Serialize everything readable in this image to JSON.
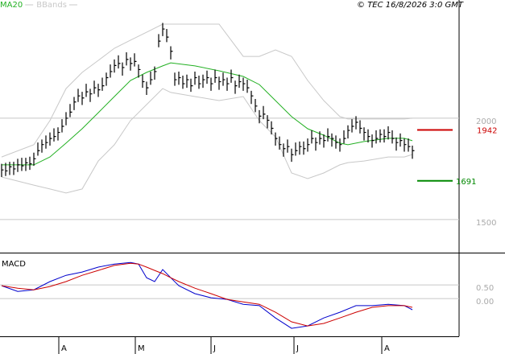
{
  "copyright": "© TEC 16/8/2026 3:0 GMT",
  "chart_data": [
    {
      "type": "ohlc",
      "xlim": [
        -0.4,
        113.6
      ],
      "ylim": [
        1341,
        2583
      ],
      "yticks": [
        2000,
        1500
      ],
      "grid": true,
      "color": "#000000",
      "high": [
        1775,
        1780,
        1785,
        1785,
        1800,
        1805,
        1805,
        1810,
        1830,
        1880,
        1895,
        1915,
        1930,
        1950,
        1955,
        1995,
        2030,
        2070,
        2105,
        2145,
        2130,
        2170,
        2145,
        2185,
        2170,
        2200,
        2225,
        2265,
        2290,
        2310,
        2275,
        2325,
        2300,
        2320,
        2265,
        2215,
        2180,
        2230,
        2255,
        2415,
        2470,
        2440,
        2355,
        2225,
        2230,
        2210,
        2215,
        2195,
        2230,
        2210,
        2215,
        2235,
        2200,
        2240,
        2205,
        2225,
        2200,
        2240,
        2185,
        2215,
        2200,
        2190,
        2135,
        2095,
        2040,
        2060,
        2015,
        1985,
        1930,
        1910,
        1875,
        1895,
        1850,
        1880,
        1885,
        1885,
        1900,
        1940,
        1905,
        1935,
        1920,
        1950,
        1925,
        1915,
        1900,
        1940,
        1965,
        1995,
        2010,
        1990,
        1955,
        1945,
        1920,
        1940,
        1945,
        1945,
        1960,
        1940,
        1905,
        1925,
        1900,
        1900,
        1865
      ],
      "low": [
        1710,
        1715,
        1720,
        1720,
        1735,
        1740,
        1740,
        1745,
        1765,
        1815,
        1830,
        1850,
        1865,
        1885,
        1890,
        1930,
        1965,
        2005,
        2040,
        2080,
        2065,
        2105,
        2080,
        2120,
        2105,
        2135,
        2160,
        2200,
        2225,
        2245,
        2210,
        2260,
        2235,
        2255,
        2200,
        2150,
        2115,
        2165,
        2190,
        2350,
        2405,
        2375,
        2290,
        2160,
        2165,
        2145,
        2150,
        2130,
        2165,
        2145,
        2150,
        2170,
        2135,
        2175,
        2140,
        2160,
        2135,
        2175,
        2120,
        2150,
        2135,
        2125,
        2070,
        2030,
        1975,
        1995,
        1950,
        1920,
        1865,
        1845,
        1810,
        1830,
        1785,
        1815,
        1820,
        1820,
        1835,
        1875,
        1840,
        1870,
        1855,
        1885,
        1860,
        1850,
        1835,
        1875,
        1900,
        1930,
        1945,
        1925,
        1890,
        1880,
        1855,
        1875,
        1880,
        1880,
        1895,
        1875,
        1840,
        1860,
        1835,
        1835,
        1800
      ],
      "close": [
        1745,
        1740,
        1760,
        1750,
        1770,
        1765,
        1780,
        1775,
        1800,
        1840,
        1870,
        1880,
        1900,
        1910,
        1930,
        1960,
        2000,
        2030,
        2080,
        2110,
        2100,
        2130,
        2120,
        2150,
        2140,
        2160,
        2200,
        2230,
        2260,
        2270,
        2250,
        2290,
        2270,
        2280,
        2240,
        2180,
        2150,
        2190,
        2230,
        2380,
        2440,
        2400,
        2330,
        2190,
        2200,
        2170,
        2190,
        2160,
        2200,
        2170,
        2190,
        2200,
        2170,
        2200,
        2180,
        2190,
        2170,
        2200,
        2160,
        2180,
        2170,
        2150,
        2110,
        2060,
        2010,
        2020,
        1990,
        1950,
        1900,
        1870,
        1850,
        1860,
        1820,
        1840,
        1860,
        1850,
        1870,
        1900,
        1880,
        1900,
        1890,
        1910,
        1900,
        1880,
        1870,
        1900,
        1940,
        1960,
        1980,
        1950,
        1930,
        1910,
        1890,
        1900,
        1920,
        1910,
        1930,
        1900,
        1880,
        1890,
        1870,
        1860,
        1840
      ],
      "series": [
        {
          "name": "MA20",
          "color": "#22b022",
          "x": [
            0,
            8,
            12,
            16,
            20,
            24,
            28,
            32,
            36,
            40,
            42,
            48,
            54,
            60,
            64,
            68,
            72,
            76,
            80,
            84,
            86,
            90,
            96,
            100,
            102
          ],
          "values": [
            1770,
            1770,
            1809,
            1877,
            1948,
            2027,
            2107,
            2186,
            2226,
            2258,
            2273,
            2258,
            2234,
            2206,
            2166,
            2087,
            2008,
            1948,
            1916,
            1877,
            1869,
            1885,
            1901,
            1901,
            1889
          ]
        }
      ],
      "bands": {
        "name": "BBands",
        "color": "#c8c8c8",
        "x": [
          0,
          8,
          12,
          16,
          20,
          24,
          28,
          32,
          36,
          40,
          42,
          48,
          54,
          60,
          64,
          68,
          72,
          76,
          80,
          84,
          86,
          90,
          96,
          100,
          102
        ],
        "upper": [
          1809,
          1869,
          1988,
          2146,
          2226,
          2285,
          2345,
          2385,
          2424,
          2464,
          2464,
          2464,
          2464,
          2305,
          2305,
          2337,
          2305,
          2186,
          2087,
          2008,
          1996,
          1996,
          1996,
          1996,
          2000
        ],
        "lower": [
          1710,
          1670,
          1651,
          1631,
          1651,
          1789,
          1869,
          1988,
          2067,
          2146,
          2127,
          2107,
          2087,
          2107,
          1988,
          1908,
          1730,
          1702,
          1730,
          1770,
          1781,
          1789,
          1809,
          1809,
          1821
        ]
      },
      "levels": [
        {
          "value": 1942,
          "color": "#cc0000"
        },
        {
          "value": 1691,
          "color": "#008800"
        }
      ]
    },
    {
      "type": "line",
      "title": "MACD",
      "xlim": [
        -0.4,
        113.6
      ],
      "ylim": [
        -1.38,
        1.62
      ],
      "yticks": [
        {
          "value": 0.5,
          "label": "0.50"
        },
        {
          "value": 0,
          "label": "0.00"
        }
      ],
      "xticks": [
        {
          "value": 14.2,
          "label": "A"
        },
        {
          "value": 33.2,
          "label": "M"
        },
        {
          "value": 52,
          "label": "J"
        },
        {
          "value": 72.6,
          "label": "J"
        },
        {
          "value": 94.4,
          "label": "A"
        }
      ],
      "x": [
        0,
        4,
        8,
        12,
        16,
        20,
        24,
        28,
        32,
        34,
        36,
        38,
        40,
        42,
        44,
        48,
        52,
        56,
        60,
        64,
        68,
        72,
        76,
        80,
        84,
        88,
        92,
        96,
        100,
        102
      ],
      "series": [
        {
          "color": "#0000cc",
          "values": [
            0.47,
            0.26,
            0.32,
            0.62,
            0.85,
            0.97,
            1.15,
            1.26,
            1.32,
            1.26,
            0.76,
            0.62,
            1.06,
            0.76,
            0.47,
            0.18,
            0.03,
            -0.03,
            -0.21,
            -0.26,
            -0.71,
            -1.09,
            -1.0,
            -0.71,
            -0.5,
            -0.26,
            -0.26,
            -0.21,
            -0.26,
            -0.41
          ]
        },
        {
          "color": "#cc0000",
          "values": [
            0.47,
            0.38,
            0.32,
            0.44,
            0.62,
            0.85,
            1.03,
            1.21,
            1.29,
            1.26,
            1.15,
            1.03,
            0.91,
            0.76,
            0.62,
            0.38,
            0.18,
            -0.03,
            -0.12,
            -0.21,
            -0.5,
            -0.85,
            -1.0,
            -0.91,
            -0.71,
            -0.5,
            -0.32,
            -0.26,
            -0.26,
            -0.32
          ]
        }
      ]
    }
  ]
}
